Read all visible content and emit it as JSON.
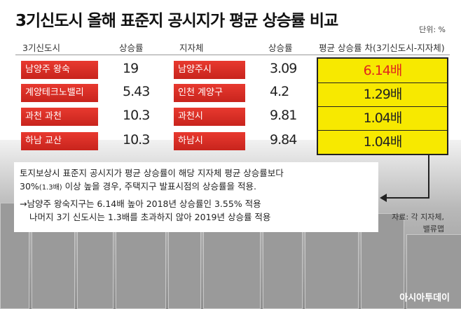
{
  "header": {
    "title": "3기신도시 올해 표준지 공시지가 평균 상승률 비교",
    "unit": "단위: %"
  },
  "table": {
    "columns": [
      "3기신도시",
      "상승률",
      "지자체",
      "상승률",
      "평균 상승률 차(3기신도시-지자체)"
    ],
    "rows": [
      [
        "남양주 왕숙",
        "19",
        "남양주시",
        "3.09",
        "6.14배"
      ],
      [
        "계양테크노밸리",
        "5.43",
        "인천 계양구",
        "4.2",
        "1.29배"
      ],
      [
        "과천 과천",
        "10.3",
        "과천시",
        "9.81",
        "1.04배"
      ],
      [
        "하남 교산",
        "10.3",
        "하남시",
        "9.84",
        "1.04배"
      ]
    ]
  },
  "note": {
    "line1": "토지보상시 표준지 공시지가 평균 상승률이 해당 지자체 평균 상승률보다",
    "line2a": "30%",
    "line2b": "(1.3배)",
    "line2c": " 이상 높을 경우, 주택지구 발표시점의 상승률을 적용.",
    "line3": "→남양주 왕숙지구는 6.14배 높아 2018년 상승률인 3.55% 적용",
    "line4": "나머지 3기 신도시는 1.3배를 초과하지 않아 2019년 상승률 적용"
  },
  "source": {
    "line1": "자료: 각 지자체,",
    "line2": "밸류맵"
  },
  "logo": "아시아투데이"
}
